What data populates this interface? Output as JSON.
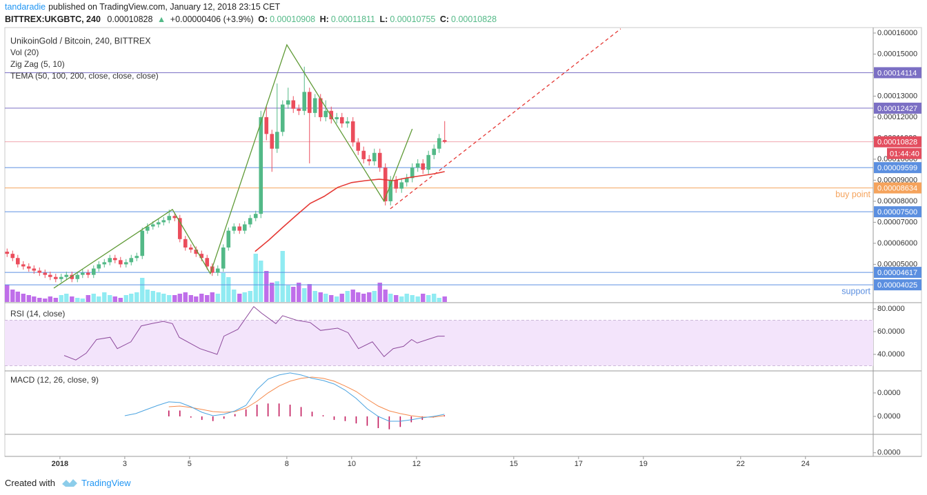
{
  "header": {
    "author": "tandaradie",
    "published": "published on TradingView.com, January 12, 2018 23:15 CET",
    "symbol": "BITTREX:UKGBTC, 240",
    "price": 0.00010828,
    "arrow": "▲",
    "change": "+0.00000406 (+3.9%)",
    "ohlc": [
      {
        "key": "O:",
        "value": 0.00010908
      },
      {
        "key": "H:",
        "value": 0.00011811
      },
      {
        "key": "L:",
        "value": 0.00010755
      },
      {
        "key": "C:",
        "value": 0.00010828
      }
    ]
  },
  "footer": {
    "created": "Created with",
    "brand": "TradingView"
  },
  "chart_data": [
    {
      "type": "candlestick",
      "title": "UnikoinGold / Bitcoin, 240, BITTREX",
      "indicators": [
        "Vol (20)",
        "Zig Zag (5, 10)",
        "TEMA (50, 100, 200, close, close, close)"
      ],
      "up_color": "#53b987",
      "down_color": "#eb4d5c",
      "volume_up_color": "#7de8f0",
      "volume_down_color": "#b455e6",
      "xlim": [
        -0.7,
        26.09
      ],
      "ylim": [
        3.21e-05,
        0.0001626
      ],
      "volume_ylim": [
        0,
        100
      ],
      "xticks": [
        {
          "value": 1,
          "label": "2018"
        },
        3,
        5,
        8,
        10,
        12,
        15,
        17,
        19,
        22,
        24
      ],
      "yticks": [
        {
          "value": 0.00016,
          "label": "0.00016000"
        },
        {
          "value": 0.00015,
          "label": "0.00015000"
        },
        {
          "value": 0.00014,
          "label": "0.00014000"
        },
        {
          "value": 0.00013,
          "label": "0.00013000"
        },
        {
          "value": 0.00012,
          "label": "0.00012000"
        },
        {
          "value": 0.00011,
          "label": "0.00011000"
        },
        {
          "value": 0.0001,
          "label": "0.00010000"
        },
        {
          "value": 9e-05,
          "label": "0.00009000"
        },
        {
          "value": 8e-05,
          "label": "0.00008000"
        },
        {
          "value": 7e-05,
          "label": "0.00007000"
        },
        {
          "value": 6e-05,
          "label": "0.00006000"
        },
        {
          "value": 5e-05,
          "label": "0.00005000"
        }
      ],
      "x": [
        -0.63,
        -0.46,
        -0.3,
        -0.13,
        0.04,
        0.2,
        0.37,
        0.54,
        0.7,
        0.87,
        1.04,
        1.2,
        1.37,
        1.54,
        1.7,
        1.87,
        2.04,
        2.2,
        2.37,
        2.54,
        2.7,
        2.87,
        3.04,
        3.2,
        3.37,
        3.54,
        3.7,
        3.87,
        4.04,
        4.2,
        4.37,
        4.54,
        4.7,
        4.87,
        5.04,
        5.2,
        5.37,
        5.54,
        5.7,
        5.87,
        6.04,
        6.2,
        6.37,
        6.54,
        6.7,
        6.87,
        7.04,
        7.2,
        7.37,
        7.54,
        7.7,
        7.87,
        8.04,
        8.2,
        8.37,
        8.54,
        8.7,
        8.87,
        9.04,
        9.2,
        9.37,
        9.54,
        9.7,
        9.87,
        10.04,
        10.2,
        10.37,
        10.54,
        10.7,
        10.87,
        11.04,
        11.2,
        11.37,
        11.54,
        11.7,
        11.87,
        12.04,
        12.2,
        12.37,
        12.54,
        12.7,
        12.87
      ],
      "open": [
        5.6e-05,
        5.5e-05,
        5.3e-05,
        5e-05,
        4.9e-05,
        4.8e-05,
        4.7e-05,
        4.6e-05,
        4.5e-05,
        4.4e-05,
        4.3e-05,
        4.4e-05,
        4.5e-05,
        4.3e-05,
        4.5e-05,
        4.6e-05,
        4.5e-05,
        4.8e-05,
        5e-05,
        5.1e-05,
        5.3e-05,
        5.2e-05,
        5e-05,
        5.1e-05,
        5.3e-05,
        5.4e-05,
        6.6e-05,
        6.8e-05,
        6.9e-05,
        7e-05,
        7.1e-05,
        7.3e-05,
        7.2e-05,
        6.2e-05,
        5.8e-05,
        5.7e-05,
        5.5e-05,
        5.3e-05,
        4.9e-05,
        4.6e-05,
        4.8e-05,
        5.8e-05,
        6.6e-05,
        6.8e-05,
        6.6e-05,
        6.9e-05,
        7.2e-05,
        7.4e-05,
        0.00012,
        0.000112,
        0.000105,
        0.000113,
        0.000126,
        0.000128,
        0.000124,
        0.000123,
        0.000132,
        0.000122,
        0.000129,
        0.00012,
        0.000123,
        0.000119,
        0.00012,
        0.000117,
        0.000118,
        0.000108,
        0.000104,
        0.0001,
        9.9e-05,
        0.000103,
        9.6e-05,
        8e-05,
        9e-05,
        8.6e-05,
        8.9e-05,
        9.1e-05,
        9.6e-05,
        9.8e-05,
        9.5e-05,
        0.000102,
        0.000105,
        0.00010908
      ],
      "high": [
        5.75e-05,
        5.65e-05,
        5.45e-05,
        5.15e-05,
        5.05e-05,
        4.95e-05,
        4.85e-05,
        4.75e-05,
        4.65e-05,
        4.55e-05,
        4.55e-05,
        4.65e-05,
        4.65e-05,
        4.65e-05,
        4.75e-05,
        4.75e-05,
        4.95e-05,
        5.15e-05,
        5.25e-05,
        5.45e-05,
        5.45e-05,
        5.35e-05,
        5.25e-05,
        5.45e-05,
        5.55e-05,
        6.75e-05,
        6.95e-05,
        7.05e-05,
        7.15e-05,
        7.25e-05,
        7.6e-05,
        7.45e-05,
        7.35e-05,
        6.35e-05,
        5.95e-05,
        5.85e-05,
        5.65e-05,
        5.45e-05,
        5.05e-05,
        4.95e-05,
        5.95e-05,
        6.75e-05,
        6.95e-05,
        6.95e-05,
        7.05e-05,
        7.35e-05,
        7.55e-05,
        0.000123,
        0.000125,
        0.000114,
        0.000136,
        0.000128,
        0.000134,
        0.00013,
        0.000126,
        0.000144,
        0.000134,
        0.000131,
        0.000131,
        0.000128,
        0.000125,
        0.000122,
        0.000122,
        0.00012,
        0.00012,
        0.00011,
        0.000106,
        0.000102,
        0.000105,
        0.000105,
        9.8e-05,
        9.2e-05,
        9.2e-05,
        9.1e-05,
        9.3e-05,
        9.8e-05,
        0.0001,
        0.0001,
        0.000104,
        0.000107,
        0.000112,
        0.00011811
      ],
      "low": [
        5.35e-05,
        5.15e-05,
        4.85e-05,
        4.75e-05,
        4.65e-05,
        4.55e-05,
        4.45e-05,
        4.35e-05,
        4.25e-05,
        4.15e-05,
        4.15e-05,
        4.25e-05,
        4.15e-05,
        4.15e-05,
        4.35e-05,
        4.35e-05,
        4.35e-05,
        4.65e-05,
        4.85e-05,
        4.95e-05,
        5.05e-05,
        4.85e-05,
        4.85e-05,
        4.95e-05,
        5.15e-05,
        5.25e-05,
        6.45e-05,
        6.65e-05,
        6.75e-05,
        6.85e-05,
        6.95e-05,
        7.05e-05,
        6.05e-05,
        5.65e-05,
        5.55e-05,
        5.35e-05,
        5.15e-05,
        4.75e-05,
        4.45e-05,
        4.45e-05,
        4.65e-05,
        5.65e-05,
        6.45e-05,
        6.45e-05,
        6.45e-05,
        6.75e-05,
        7.05e-05,
        7.2e-05,
        0.000109,
        9.4e-05,
        0.000103,
        0.000111,
        0.000124,
        0.000122,
        0.000121,
        0.000121,
        9.8e-05,
        0.00012,
        0.000118,
        0.000118,
        0.000117,
        0.000117,
        0.000115,
        0.000115,
        0.000106,
        0.000102,
        9.8e-05,
        9.7e-05,
        9.7e-05,
        9.4e-05,
        7.8e-05,
        7.8e-05,
        8.4e-05,
        8.4e-05,
        8.7e-05,
        8.9e-05,
        9.4e-05,
        9.3e-05,
        9.3e-05,
        0.0001,
        0.000103,
        0.00010755
      ],
      "close": [
        5.5e-05,
        5.3e-05,
        5e-05,
        4.9e-05,
        4.8e-05,
        4.7e-05,
        4.6e-05,
        4.5e-05,
        4.4e-05,
        4.3e-05,
        4.4e-05,
        4.5e-05,
        4.3e-05,
        4.5e-05,
        4.6e-05,
        4.5e-05,
        4.8e-05,
        5e-05,
        5.1e-05,
        5.3e-05,
        5.2e-05,
        5e-05,
        5.1e-05,
        5.3e-05,
        5.4e-05,
        6.6e-05,
        6.8e-05,
        6.9e-05,
        7e-05,
        7.1e-05,
        7.3e-05,
        7.2e-05,
        6.2e-05,
        5.8e-05,
        5.7e-05,
        5.5e-05,
        5.3e-05,
        4.9e-05,
        4.6e-05,
        4.8e-05,
        5.8e-05,
        6.6e-05,
        6.8e-05,
        6.6e-05,
        6.9e-05,
        7.2e-05,
        7.4e-05,
        0.00012,
        0.000112,
        0.000105,
        0.000113,
        0.000126,
        0.000128,
        0.000124,
        0.000123,
        0.000132,
        0.000122,
        0.000129,
        0.00012,
        0.000123,
        0.000119,
        0.00012,
        0.000117,
        0.000118,
        0.000108,
        0.000104,
        0.0001,
        9.9e-05,
        0.000103,
        9.6e-05,
        8e-05,
        9e-05,
        8.6e-05,
        8.9e-05,
        9.1e-05,
        9.6e-05,
        9.8e-05,
        9.5e-05,
        0.000102,
        0.000105,
        0.00011,
        0.00010828
      ],
      "volume": [
        25,
        18,
        15,
        12,
        10,
        8,
        6,
        5,
        8,
        6,
        10,
        12,
        8,
        6,
        5,
        10,
        12,
        8,
        14,
        10,
        8,
        6,
        10,
        12,
        14,
        35,
        18,
        16,
        14,
        12,
        10,
        10,
        12,
        14,
        10,
        8,
        12,
        10,
        14,
        12,
        42,
        36,
        18,
        12,
        14,
        16,
        70,
        60,
        45,
        28,
        30,
        74,
        24,
        22,
        28,
        20,
        26,
        16,
        14,
        12,
        10,
        8,
        12,
        16,
        18,
        14,
        12,
        14,
        16,
        28,
        18,
        12,
        10,
        8,
        12,
        10,
        8,
        12,
        10,
        12,
        6,
        8
      ],
      "tema": {
        "color": "#e53935",
        "x": [
          7.02,
          7.45,
          7.87,
          8.3,
          8.72,
          9.15,
          9.57,
          10.0,
          10.43,
          10.85,
          11.28,
          11.7,
          12.13,
          12.55,
          12.87
        ],
        "values": [
          5.61e-05,
          6.16e-05,
          6.75e-05,
          7.34e-05,
          7.9e-05,
          8.23e-05,
          8.66e-05,
          8.89e-05,
          8.98e-05,
          9.05e-05,
          8.98e-05,
          9.11e-05,
          9.21e-05,
          9.31e-05,
          9.41e-05
        ]
      },
      "zigzag": {
        "color": "#5f9a36",
        "x": [
          0.81,
          4.47,
          5.64,
          8.0,
          11.0,
          11.87
        ],
        "values": [
          3.87e-05,
          7.61e-05,
          4.56e-05,
          0.0001544,
          8e-05,
          0.0001144
        ]
      },
      "trendline": {
        "color": "#e53935",
        "x": [
          11.19,
          18.3
        ],
        "values": [
          7.64e-05,
          0.000162
        ]
      },
      "levels": [
        {
          "value": 0.00014114,
          "label": "0.00014114",
          "color": "#7b6fc4"
        },
        {
          "value": 0.00012427,
          "label": "0.00012427",
          "color": "#7b6fc4"
        },
        {
          "value": 9.599e-05,
          "label": "0.00009599",
          "color": "#5b8fe0"
        },
        {
          "value": 8.634e-05,
          "label": "0.00008634",
          "color": "#f5a35c",
          "note": "buy point"
        },
        {
          "value": 7.5e-05,
          "label": "0.00007500",
          "color": "#5b8fe0"
        },
        {
          "value": 4.617e-05,
          "label": "0.00004617",
          "color": "#5b8fe0"
        },
        {
          "value": 4.025e-05,
          "label": "0.00004025",
          "color": "#5b8fe0",
          "note": "support"
        }
      ],
      "last_price": {
        "value": 0.00010828,
        "label": "0.00010828",
        "countdown": "01:44:40",
        "color": "#e34d5e"
      }
    },
    {
      "type": "line",
      "title": "RSI (14, close)",
      "color": "#8d4a9c",
      "band": [
        30,
        70
      ],
      "band_color": "#f3e4fb",
      "xlim": [
        -0.7,
        26.09
      ],
      "ylim": [
        25.45,
        84.85
      ],
      "yticks": [
        {
          "value": 80,
          "label": "80.0000"
        },
        {
          "value": 60,
          "label": "60.0000"
        },
        {
          "value": 40,
          "label": "40.0000"
        }
      ],
      "x": [
        1.13,
        1.49,
        1.81,
        2.13,
        2.55,
        2.77,
        3.19,
        3.51,
        3.83,
        4.19,
        4.47,
        4.68,
        5.32,
        5.85,
        6.06,
        6.49,
        6.98,
        7.23,
        7.66,
        7.87,
        8.3,
        8.72,
        9.04,
        9.57,
        9.89,
        10.21,
        10.64,
        11.0,
        11.28,
        11.6,
        11.85,
        12.02,
        12.34,
        12.66,
        12.87
      ],
      "values": [
        39,
        35,
        41,
        53,
        55,
        45,
        51,
        65,
        67,
        69,
        67,
        55,
        45,
        40,
        56,
        62,
        82,
        76,
        67,
        74,
        70,
        68,
        61,
        63,
        59,
        45,
        51,
        38,
        45,
        47,
        53,
        50,
        53,
        56,
        56
      ]
    },
    {
      "type": "macd",
      "title": "MACD (12, 26, close, 9)",
      "xlim": [
        -0.7,
        26.09
      ],
      "ylim": [
        -3.41e-06,
        3.76e-06
      ],
      "yticks": [
        {
          "value": 2e-06,
          "label": "0.0000"
        },
        {
          "value": 0,
          "label": "0.0000"
        },
        {
          "value": -3.1e-06,
          "label": "0.0000"
        }
      ],
      "x": [
        3.0,
        3.34,
        3.68,
        4.02,
        4.36,
        4.7,
        5.04,
        5.38,
        5.72,
        6.06,
        6.4,
        6.74,
        7.08,
        7.42,
        7.76,
        8.1,
        8.44,
        8.78,
        9.12,
        9.46,
        9.8,
        10.14,
        10.48,
        10.82,
        11.16,
        11.5,
        11.84,
        12.18,
        12.52,
        12.86
      ],
      "macd": {
        "color": "#4aa3e0",
        "values": [
          6e-08,
          2.4e-07,
          5.9e-07,
          9.4e-07,
          1.24e-06,
          1.18e-06,
          8.2e-07,
          3.5e-07,
          6e-08,
          1.8e-07,
          4.7e-07,
          9.4e-07,
          2.29e-06,
          3.18e-06,
          3.53e-06,
          3.71e-06,
          3.53e-06,
          3.24e-06,
          3.06e-06,
          2.76e-06,
          2.24e-06,
          1.53e-06,
          6.5e-07,
          0,
          -4.1e-07,
          -4.1e-07,
          -2.9e-07,
          -1.2e-07,
          0,
          1.8e-07
        ]
      },
      "signal": {
        "color": "#f5894a",
        "values": [
          null,
          null,
          null,
          null,
          8.2e-07,
          8.8e-07,
          7.6e-07,
          5.9e-07,
          4.1e-07,
          3.5e-07,
          4.1e-07,
          7.1e-07,
          1.29e-06,
          2e-06,
          2.59e-06,
          3e-06,
          3.24e-06,
          3.35e-06,
          3.24e-06,
          3e-06,
          2.59e-06,
          2.12e-06,
          1.47e-06,
          8.8e-07,
          4.7e-07,
          2.4e-07,
          6e-08,
          -6e-08,
          -6e-08,
          6e-08
        ]
      },
      "histogram": {
        "color": "#c2185b",
        "values": [
          null,
          null,
          null,
          null,
          5e-07,
          5e-07,
          -1e-07,
          -3e-07,
          -4e-07,
          -2e-07,
          2e-07,
          6e-07,
          1e-06,
          1.1e-06,
          1.1e-06,
          1e-06,
          8e-07,
          4e-07,
          1e-07,
          -3e-07,
          -4e-07,
          -6e-07,
          -8e-07,
          -1e-06,
          -1.1e-06,
          -9e-07,
          -5e-07,
          -3e-07,
          -1e-07,
          1e-07
        ]
      }
    }
  ]
}
